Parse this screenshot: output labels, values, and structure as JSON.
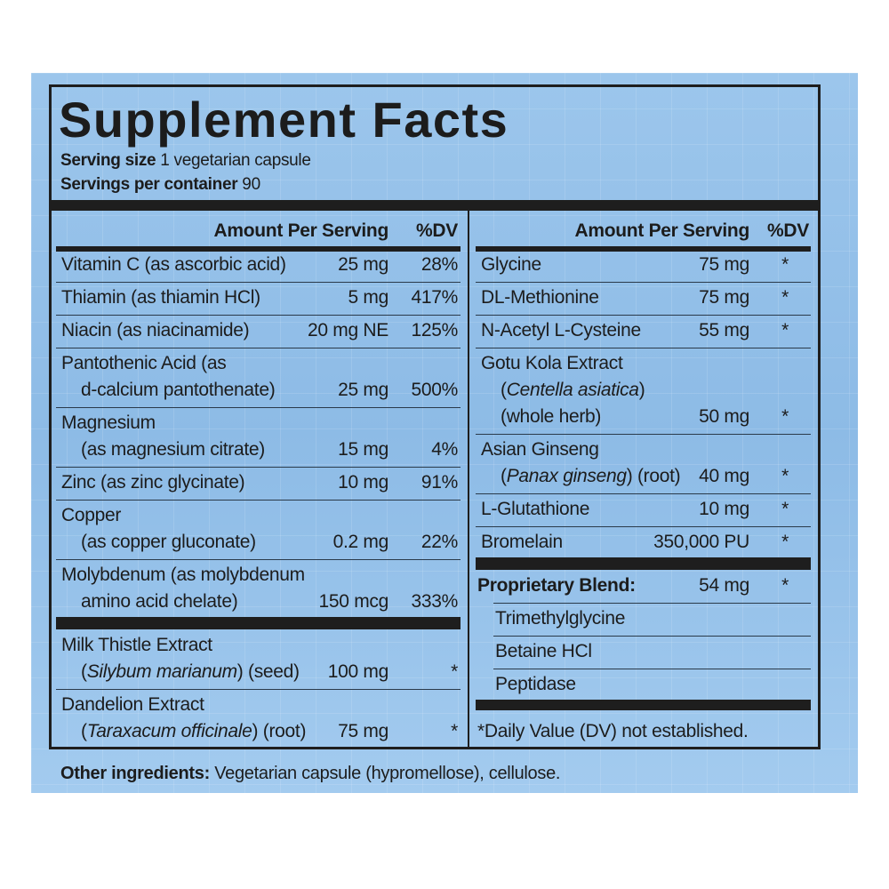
{
  "title": "Supplement Facts",
  "serving_size": {
    "label": "Serving size",
    "value": "1 vegetarian capsule"
  },
  "servings_per_container": {
    "label": "Servings per container",
    "value": "90"
  },
  "left": {
    "header": {
      "amount": "Amount Per Serving",
      "dv": "%DV"
    },
    "sections": [
      [
        {
          "lines": [
            "Vitamin C (as ascorbic acid)"
          ],
          "amount": "25 mg",
          "dv": "28%"
        },
        {
          "lines": [
            "Thiamin (as thiamin HCl)"
          ],
          "amount": "5 mg",
          "dv": "417%"
        },
        {
          "lines": [
            "Niacin (as niacinamide)"
          ],
          "amount": "20 mg NE",
          "dv": "125%"
        },
        {
          "lines": [
            "Pantothenic Acid (as",
            "d-calcium pantothenate)"
          ],
          "amount": "25 mg",
          "dv": "500%"
        },
        {
          "lines": [
            "Magnesium",
            "(as magnesium citrate)"
          ],
          "amount": "15 mg",
          "dv": "4%"
        },
        {
          "lines": [
            "Zinc (as zinc glycinate)"
          ],
          "amount": "10 mg",
          "dv": "91%"
        },
        {
          "lines": [
            "Copper",
            "(as copper gluconate)"
          ],
          "amount": "0.2 mg",
          "dv": "22%"
        },
        {
          "lines": [
            "Molybdenum (as molybdenum",
            "amino acid chelate)"
          ],
          "amount": "150 mcg",
          "dv": "333%"
        }
      ],
      [
        {
          "lines": [
            "Milk Thistle Extract",
            [
              "(",
              {
                "italic": "Silybum marianum"
              },
              ") (seed)"
            ]
          ],
          "amount": "100 mg",
          "dv": "*"
        },
        {
          "lines": [
            "Dandelion Extract",
            [
              "(",
              {
                "italic": "Taraxacum officinale"
              },
              ") (root)"
            ]
          ],
          "amount": "75 mg",
          "dv": "*"
        }
      ]
    ]
  },
  "right": {
    "header": {
      "amount": "Amount Per Serving",
      "dv": "%DV"
    },
    "sections": [
      [
        {
          "lines": [
            "Glycine"
          ],
          "amount": "75 mg",
          "dv": "*"
        },
        {
          "lines": [
            "DL-Methionine"
          ],
          "amount": "75 mg",
          "dv": "*"
        },
        {
          "lines": [
            "N-Acetyl L-Cysteine"
          ],
          "amount": "55 mg",
          "dv": "*"
        },
        {
          "lines": [
            "Gotu Kola Extract",
            [
              "(",
              {
                "italic": "Centella asiatica"
              },
              ")"
            ],
            "(whole herb)"
          ],
          "amount": "50 mg",
          "dv": "*"
        },
        {
          "lines": [
            "Asian Ginseng",
            [
              "(",
              {
                "italic": "Panax ginseng"
              },
              ") (root)"
            ]
          ],
          "amount": "40 mg",
          "dv": "*"
        },
        {
          "lines": [
            "L-Glutathione"
          ],
          "amount": "10 mg",
          "dv": "*"
        },
        {
          "lines": [
            "Bromelain"
          ],
          "amount": "350,000 PU",
          "dv": "*"
        }
      ]
    ],
    "blend": {
      "name": "Proprietary Blend:",
      "amount": "54 mg",
      "dv": "*",
      "ingredients": [
        "Trimethylglycine",
        "Betaine HCl",
        "Peptidase"
      ]
    },
    "footnote": "*Daily Value (DV) not established."
  },
  "other_ingredients": {
    "label": "Other ingredients:",
    "value": "Vegetarian capsule (hypromellose), cellulose."
  }
}
